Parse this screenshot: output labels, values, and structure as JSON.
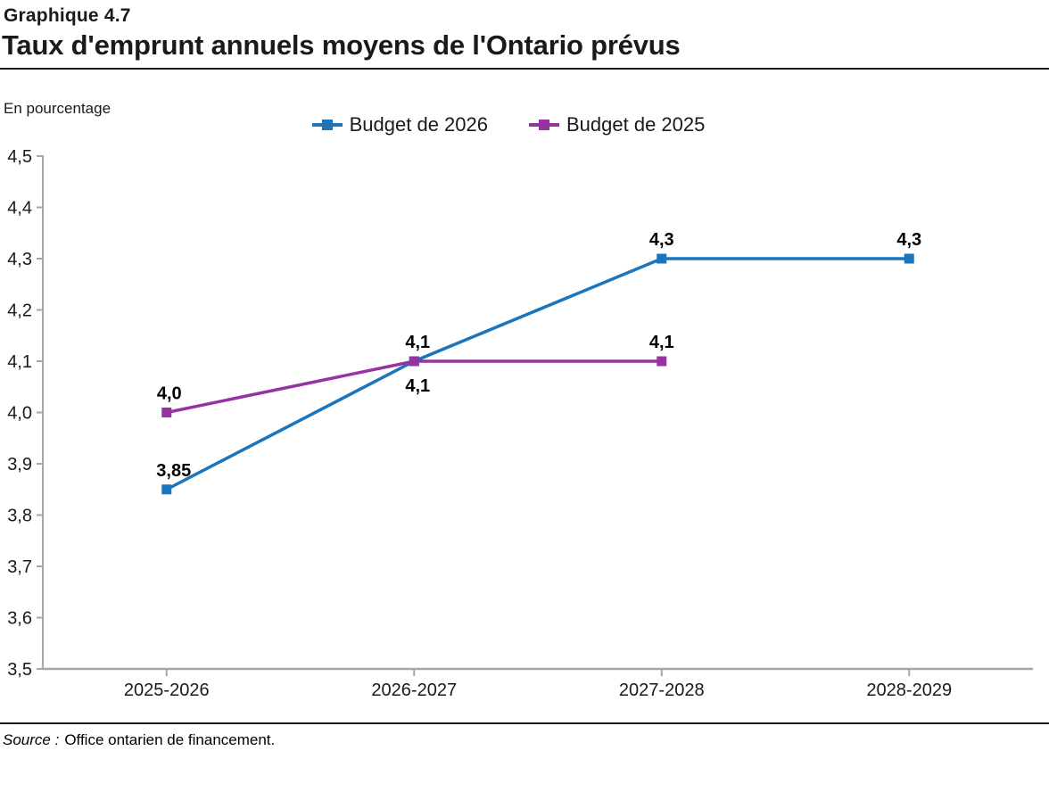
{
  "header": {
    "kicker": "Graphique 4.7",
    "title": "Taux d'emprunt annuels moyens de l'Ontario prévus"
  },
  "unit_label": "En pourcentage",
  "legend": [
    {
      "label": "Budget de 2026",
      "color": "#1B75BC"
    },
    {
      "label": "Budget de 2025",
      "color": "#9632A2"
    }
  ],
  "source": {
    "label": "Source :",
    "text": "Office ontarien de financement."
  },
  "chart_data": {
    "type": "line",
    "title": "Taux d'emprunt annuels moyens de l'Ontario prévus",
    "ylabel": "En pourcentage",
    "xlabel": "",
    "categories": [
      "2025-2026",
      "2026-2027",
      "2027-2028",
      "2028-2029"
    ],
    "series": [
      {
        "name": "Budget de 2026",
        "color": "#1B75BC",
        "values": [
          3.85,
          4.1,
          4.3,
          4.3
        ],
        "labels": [
          "3,85",
          "4,1",
          "4,3",
          "4,3"
        ],
        "label_positions": [
          "above",
          "below",
          "above",
          "above"
        ],
        "label_dx": [
          8,
          4,
          0,
          0
        ]
      },
      {
        "name": "Budget de 2025",
        "color": "#9632A2",
        "values": [
          4.0,
          4.1,
          4.1
        ],
        "labels": [
          "4,0",
          "4,1",
          "4,1"
        ],
        "label_positions": [
          "above",
          "above",
          "above"
        ],
        "label_dx": [
          3,
          4,
          0
        ]
      }
    ],
    "ylim": [
      3.5,
      4.5
    ],
    "ytick_step": 0.1,
    "ytick_labels": [
      "3,5",
      "3,6",
      "3,7",
      "3,8",
      "3,9",
      "4,0",
      "4,1",
      "4,2",
      "4,3",
      "4,4",
      "4,5"
    ],
    "grid": false,
    "legend_position": "top",
    "axis_color": "#A6A6A6"
  }
}
